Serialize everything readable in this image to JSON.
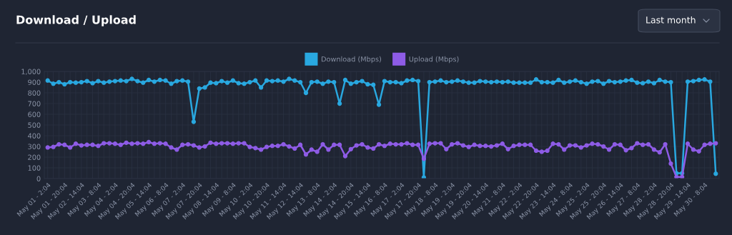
{
  "chart_data": {
    "type": "line",
    "title": "Download / Upload",
    "annotations": [
      "Last month"
    ],
    "categories": [
      "May 01 - 2:04",
      null,
      null,
      "May 01 - 20:04",
      null,
      null,
      "May 02 - 14:04",
      null,
      null,
      "May 03 - 8:04",
      null,
      null,
      "May 04 - 2:04",
      null,
      null,
      "May 04 - 20:04",
      null,
      null,
      "May 05 - 14:04",
      null,
      null,
      "May 06 - 8:04",
      null,
      null,
      "May 07 - 2:04",
      null,
      null,
      "May 07 - 20:04",
      null,
      null,
      "May 08 - 14:04",
      null,
      null,
      "May 09 - 8:04",
      null,
      null,
      "May 10 - 2:04",
      null,
      null,
      "May 10 - 20:04",
      null,
      null,
      "May 11 - 14:04",
      null,
      null,
      "May 12 - 14:04",
      null,
      null,
      "May 13 - 8:04",
      null,
      null,
      "May 14 - 2:04",
      null,
      null,
      "May 14 - 20:04",
      null,
      null,
      "May 15 - 14:04",
      null,
      null,
      "May 16 - 8:04",
      null,
      null,
      "May 17 - 2:04",
      null,
      null,
      "May 17 - 20:04",
      null,
      null,
      "May 18 - 8:04",
      null,
      null,
      "May 19 - 2:04",
      null,
      null,
      "May 19 - 20:04",
      null,
      null,
      "May 20 - 14:04",
      null,
      null,
      "May 21 - 8:04",
      null,
      null,
      "May 22 - 2:04",
      null,
      null,
      "May 22 - 20:04",
      null,
      null,
      "May 23 - 14:04",
      null,
      null,
      "May 24 - 8:04",
      null,
      null,
      "May 25 - 2:04",
      null,
      null,
      "May 25 - 20:04",
      null,
      null,
      "May 26 - 14:04",
      null,
      null,
      "May 27 - 8:04",
      null,
      null,
      "May 28 - 2:04",
      null,
      null,
      "May 28 - 20:04",
      null,
      null,
      "May 29 - 14:04",
      null,
      null,
      "May 30 - 8:04",
      null,
      null
    ],
    "series": [
      {
        "name": "Download (Mbps)",
        "color": "#29a8e0",
        "values": [
          915,
          885,
          900,
          880,
          900,
          895,
          900,
          910,
          890,
          910,
          895,
          905,
          910,
          915,
          910,
          930,
          910,
          895,
          920,
          905,
          920,
          915,
          885,
          910,
          915,
          905,
          530,
          840,
          850,
          895,
          890,
          910,
          895,
          915,
          890,
          885,
          900,
          915,
          850,
          915,
          910,
          915,
          905,
          930,
          915,
          900,
          800,
          900,
          905,
          885,
          905,
          900,
          700,
          920,
          885,
          900,
          910,
          880,
          875,
          690,
          910,
          900,
          900,
          890,
          915,
          920,
          910,
          10,
          900,
          905,
          915,
          900,
          905,
          915,
          905,
          895,
          895,
          910,
          905,
          900,
          905,
          900,
          905,
          895,
          895,
          895,
          895,
          925,
          900,
          900,
          895,
          920,
          895,
          905,
          915,
          900,
          885,
          905,
          910,
          885,
          910,
          900,
          905,
          915,
          920,
          895,
          890,
          905,
          890,
          920,
          905,
          900,
          50,
          50,
          905,
          910,
          920,
          925,
          905,
          45
        ]
      },
      {
        "name": "Upload (Mbps)",
        "color": "#8e5ce6",
        "values": [
          290,
          295,
          320,
          315,
          290,
          325,
          310,
          315,
          315,
          305,
          330,
          330,
          325,
          315,
          335,
          325,
          330,
          325,
          340,
          325,
          330,
          325,
          290,
          270,
          315,
          320,
          310,
          290,
          300,
          335,
          325,
          330,
          330,
          325,
          330,
          330,
          295,
          285,
          270,
          295,
          305,
          305,
          320,
          300,
          280,
          315,
          225,
          270,
          250,
          320,
          270,
          315,
          315,
          210,
          275,
          310,
          320,
          290,
          280,
          320,
          305,
          325,
          320,
          320,
          330,
          315,
          315,
          185,
          325,
          330,
          330,
          275,
          320,
          330,
          310,
          295,
          315,
          305,
          305,
          300,
          310,
          325,
          275,
          305,
          315,
          315,
          315,
          260,
          250,
          260,
          325,
          320,
          270,
          310,
          310,
          290,
          310,
          325,
          320,
          300,
          270,
          320,
          315,
          265,
          285,
          330,
          315,
          320,
          270,
          245,
          320,
          140,
          15,
          15,
          325,
          270,
          255,
          315,
          325,
          330
        ]
      }
    ],
    "ylim": [
      0,
      1000
    ],
    "yticks": [
      0,
      100,
      200,
      300,
      400,
      500,
      600,
      700,
      800,
      900,
      {
        "value": 1000,
        "label": "1,000"
      }
    ],
    "grid": true,
    "legend": "top",
    "marker": "circle",
    "line_style": "solid"
  }
}
